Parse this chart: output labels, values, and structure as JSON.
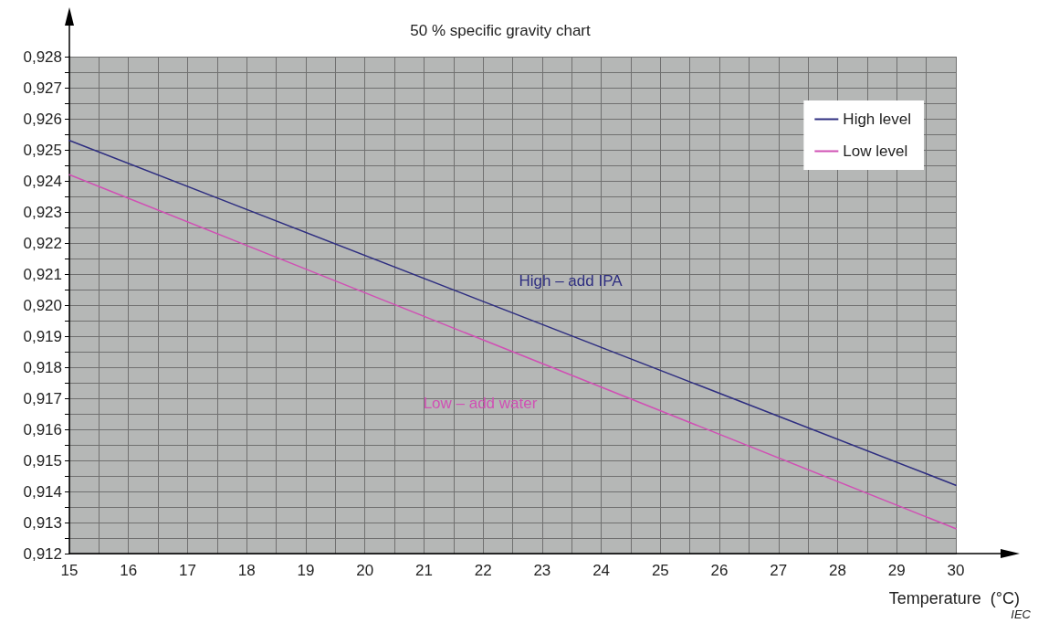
{
  "chart_data": {
    "type": "line",
    "title": "50 % specific gravity chart",
    "xlabel": "Temperature  (°C)",
    "x": [
      15,
      30
    ],
    "series": [
      {
        "name": "High level",
        "color": "#2e2e80",
        "values": [
          0.9253,
          0.9142
        ]
      },
      {
        "name": "Low level",
        "color": "#d050b4",
        "values": [
          0.9242,
          0.9128
        ]
      }
    ],
    "xlim": [
      15,
      30
    ],
    "xticks": [
      15,
      {
        "value": 15.5,
        "label": null
      },
      16,
      {
        "value": 16.5,
        "label": null
      },
      17,
      {
        "value": 17.5,
        "label": null
      },
      18,
      {
        "value": 18.5,
        "label": null
      },
      19,
      {
        "value": 19.5,
        "label": null
      },
      20,
      {
        "value": 20.5,
        "label": null
      },
      21,
      {
        "value": 21.5,
        "label": null
      },
      22,
      {
        "value": 22.5,
        "label": null
      },
      23,
      {
        "value": 23.5,
        "label": null
      },
      24,
      {
        "value": 24.5,
        "label": null
      },
      25,
      {
        "value": 25.5,
        "label": null
      },
      26,
      {
        "value": 26.5,
        "label": null
      },
      27,
      {
        "value": 27.5,
        "label": null
      },
      28,
      {
        "value": 28.5,
        "label": null
      },
      29,
      {
        "value": 29.5,
        "label": null
      },
      30
    ],
    "ylim": [
      0.912,
      0.928
    ],
    "yticks": [
      {
        "value": 0.912,
        "label": "0,912"
      },
      {
        "value": 0.9125,
        "label": null
      },
      {
        "value": 0.913,
        "label": "0,913"
      },
      {
        "value": 0.9135,
        "label": null
      },
      {
        "value": 0.914,
        "label": "0,914"
      },
      {
        "value": 0.9145,
        "label": null
      },
      {
        "value": 0.915,
        "label": "0,915"
      },
      {
        "value": 0.9155,
        "label": null
      },
      {
        "value": 0.916,
        "label": "0,916"
      },
      {
        "value": 0.9165,
        "label": null
      },
      {
        "value": 0.917,
        "label": "0,917"
      },
      {
        "value": 0.9175,
        "label": null
      },
      {
        "value": 0.918,
        "label": "0,918"
      },
      {
        "value": 0.9185,
        "label": null
      },
      {
        "value": 0.919,
        "label": "0,919"
      },
      {
        "value": 0.9195,
        "label": null
      },
      {
        "value": 0.92,
        "label": "0,920"
      },
      {
        "value": 0.9205,
        "label": null
      },
      {
        "value": 0.921,
        "label": "0,921"
      },
      {
        "value": 0.9215,
        "label": null
      },
      {
        "value": 0.922,
        "label": "0,922"
      },
      {
        "value": 0.9225,
        "label": null
      },
      {
        "value": 0.923,
        "label": "0,923"
      },
      {
        "value": 0.9235,
        "label": null
      },
      {
        "value": 0.924,
        "label": "0,924"
      },
      {
        "value": 0.9245,
        "label": null
      },
      {
        "value": 0.925,
        "label": "0,925"
      },
      {
        "value": 0.9255,
        "label": null
      },
      {
        "value": 0.926,
        "label": "0,926"
      },
      {
        "value": 0.9265,
        "label": null
      },
      {
        "value": 0.927,
        "label": "0,927"
      },
      {
        "value": 0.9275,
        "label": null
      },
      {
        "value": 0.928,
        "label": "0,928"
      }
    ],
    "grid": true,
    "legend": "top right",
    "marker": "none",
    "line_style": "solid",
    "annotations": [
      "High – add IPA",
      "Low – add water",
      "IEC"
    ]
  }
}
